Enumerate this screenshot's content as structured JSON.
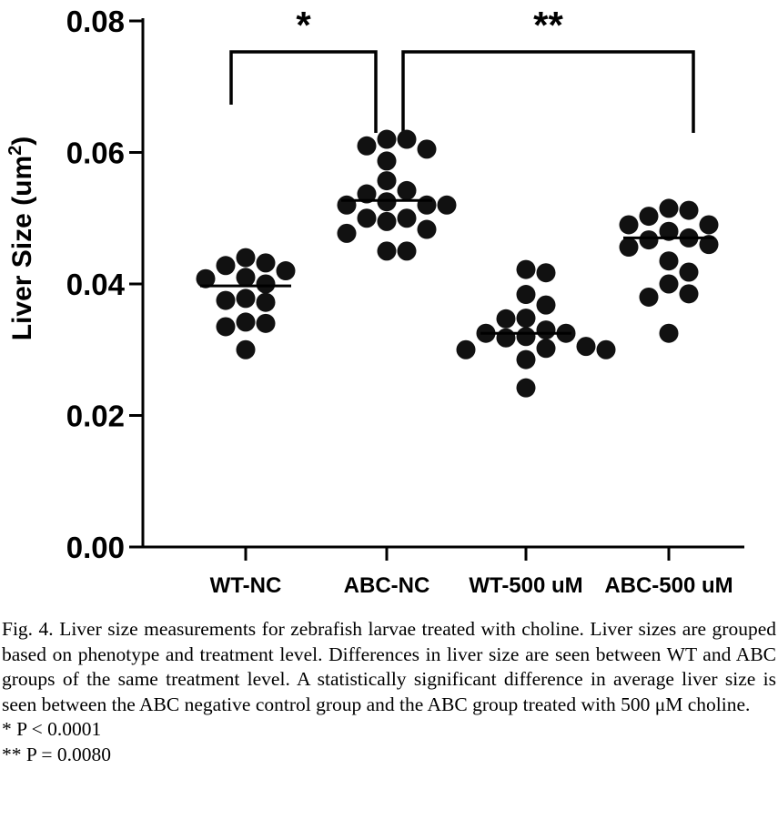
{
  "chart_data": {
    "type": "scatter",
    "ylabel": "Liver Size (um",
    "ylabel_sup": "2",
    "ylabel_close": ")",
    "ylim": [
      0,
      0.08
    ],
    "yticks": [
      "0.00",
      "0.02",
      "0.04",
      "0.06",
      "0.08"
    ],
    "grid": false,
    "categories": [
      "WT-NC",
      "ABC-NC",
      "WT-500 uM",
      "ABC-500 uM"
    ],
    "groups": [
      {
        "category": "WT-NC",
        "mean": 0.0397,
        "points": [
          0.044,
          0.042,
          0.0428,
          0.0432,
          0.0408,
          0.04,
          0.041,
          0.0372,
          0.0378,
          0.0375,
          0.034,
          0.0342,
          0.0335,
          0.03
        ]
      },
      {
        "category": "ABC-NC",
        "mean": 0.0527,
        "points": [
          0.062,
          0.061,
          0.0605,
          0.062,
          0.0587,
          0.0557,
          0.0542,
          0.0537,
          0.052,
          0.0525,
          0.052,
          0.052,
          0.05,
          0.05,
          0.0495,
          0.0477,
          0.0483,
          0.045,
          0.045
        ]
      },
      {
        "category": "WT-500 uM",
        "mean": 0.0325,
        "points": [
          0.0422,
          0.0417,
          0.0384,
          0.0368,
          0.0348,
          0.0347,
          0.033,
          0.0325,
          0.0325,
          0.0318,
          0.032,
          0.0305,
          0.0302,
          0.03,
          0.03,
          0.0285,
          0.0242
        ]
      },
      {
        "category": "ABC-500 uM",
        "mean": 0.047,
        "points": [
          0.0512,
          0.0515,
          0.0503,
          0.049,
          0.049,
          0.048,
          0.047,
          0.0467,
          0.046,
          0.0456,
          0.0435,
          0.0418,
          0.04,
          0.0385,
          0.038,
          0.0325
        ]
      }
    ],
    "annotations": [
      {
        "label": "*",
        "from": "WT-NC",
        "to": "ABC-NC"
      },
      {
        "label": "**",
        "from": "ABC-NC",
        "to": "ABC-500 uM"
      }
    ]
  },
  "caption": {
    "main": "Fig. 4. Liver size measurements for zebrafish larvae treated with choline. Liver sizes are grouped based on phenotype and treatment level. Differences in liver size are seen between WT and ABC groups of the same treatment level. A statistically significant difference in average liver size is seen between the ABC negative control group and the ABC group treated with 500 μM choline.",
    "p1": "* P < 0.0001",
    "p2": "** P = 0.0080"
  }
}
